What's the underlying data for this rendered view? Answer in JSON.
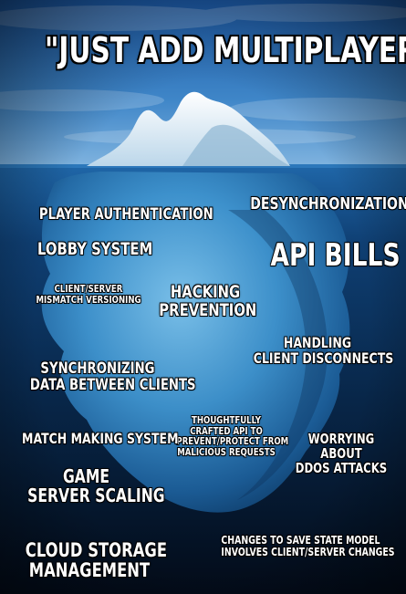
{
  "title": "\"JUST ADD MULTIPLAYER\"",
  "labels": {
    "player_authentication": "PLAYER AUTHENTICATION",
    "desynchronization": "DESYNCHRONIZATION",
    "lobby_system": "LOBBY SYSTEM",
    "api_bills": "API BILLS",
    "client_server_mismatch": [
      "CLIENT/SERVER",
      "MISMATCH VERSIONING"
    ],
    "hacking_prevention": [
      "HACKING",
      "PREVENTION"
    ],
    "handling_client_disconnects": [
      "HANDLING",
      "CLIENT DISCONNECTS"
    ],
    "synchronizing_data": [
      "SYNCHRONIZING",
      "DATA BETWEEN CLIENTS"
    ],
    "thoughtfully_crafted_api": [
      "THOUGHTFULLY",
      "CRAFTED API TO",
      "PREVENT/PROTECT FROM",
      "MALICIOUS REQUESTS"
    ],
    "match_making_system": "MATCH MAKING SYSTEM",
    "worrying_about_ddos": [
      "WORRYING",
      "ABOUT",
      "DDOS ATTACKS"
    ],
    "game_server_scaling": [
      "GAME",
      "SERVER SCALING"
    ],
    "cloud_storage_management": [
      "CLOUD STORAGE",
      "MANAGEMENT"
    ],
    "save_state_changes": [
      "CHANGES TO SAVE STATE MODEL",
      "INVOLVES CLIENT/SERVER CHANGES"
    ]
  },
  "colors": {
    "sky_top": "#1f5faa",
    "sky_bottom": "#6ea6d8",
    "water_surface": "#1d5b9a",
    "deep_water": "#04101f",
    "iceberg_underwater": "#4fa7d9",
    "ice_tip": "#eef6fb"
  }
}
